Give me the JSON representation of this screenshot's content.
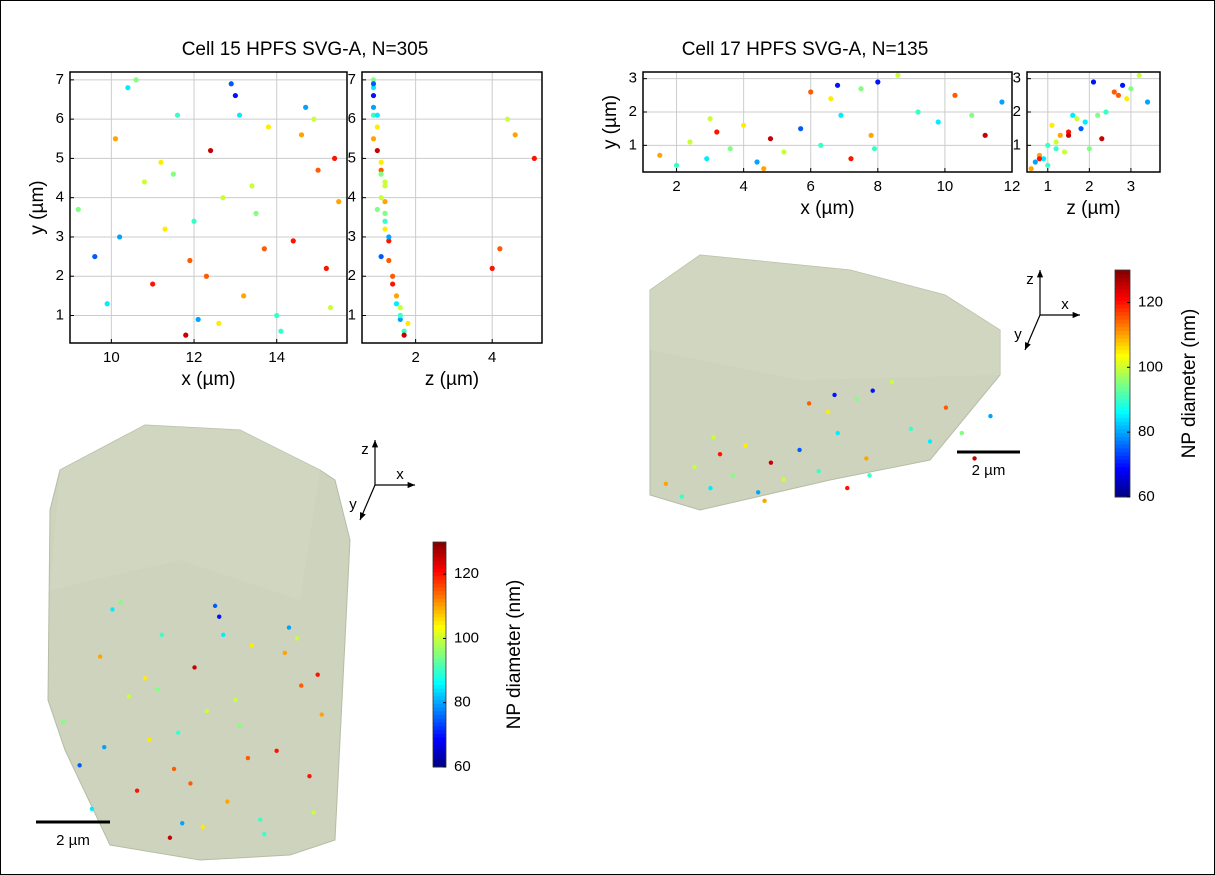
{
  "chart_data": [
    {
      "type": "scatter",
      "title": "Cell 15 HPFS SVG-A, N=305",
      "xlabel": "x (µm)",
      "ylabel": "y (µm)",
      "x": [
        9.2,
        9.6,
        10.1,
        10.4,
        10.8,
        11.0,
        11.3,
        11.6,
        11.9,
        12.1,
        12.4,
        12.7,
        13.0,
        13.2,
        13.5,
        13.8,
        14.1,
        14.4,
        14.7,
        15.0,
        15.3,
        15.5,
        9.9,
        10.6,
        11.2,
        11.8,
        12.3,
        12.9,
        13.4,
        14.0,
        14.6,
        15.2,
        10.2,
        11.5,
        12.6,
        13.7,
        14.9,
        15.4,
        12.0,
        13.1
      ],
      "values": [
        3.7,
        2.5,
        5.5,
        6.8,
        4.4,
        1.8,
        3.2,
        6.1,
        2.4,
        0.9,
        5.2,
        4.0,
        6.6,
        1.5,
        3.6,
        5.8,
        0.6,
        2.9,
        6.3,
        4.7,
        1.2,
        3.9,
        1.3,
        7.0,
        4.9,
        0.5,
        2.0,
        6.9,
        4.3,
        1.0,
        5.6,
        2.2,
        3.0,
        4.6,
        0.8,
        2.7,
        6.0,
        5.0,
        3.4,
        6.1
      ],
      "color_values": [
        95,
        75,
        110,
        85,
        100,
        120,
        105,
        90,
        115,
        80,
        125,
        100,
        70,
        110,
        95,
        105,
        90,
        120,
        80,
        115,
        100,
        110,
        85,
        95,
        105,
        125,
        115,
        75,
        100,
        90,
        110,
        120,
        80,
        95,
        105,
        115,
        100,
        120,
        90,
        85
      ],
      "xlim": [
        9,
        15.7
      ],
      "ylim": [
        0.3,
        7.2
      ],
      "xticks": [
        10,
        12,
        14
      ],
      "yticks": [
        1,
        2,
        3,
        4,
        5,
        6,
        7
      ],
      "grid": true
    },
    {
      "type": "scatter",
      "xlabel": "z (µm)",
      "x": [
        1.0,
        1.1,
        0.9,
        0.9,
        1.2,
        1.4,
        1.2,
        0.9,
        1.3,
        1.6,
        1.0,
        1.1,
        0.9,
        1.5,
        1.2,
        1.0,
        1.7,
        1.3,
        0.9,
        1.1,
        1.6,
        1.2,
        1.5,
        0.9,
        1.1,
        1.7,
        1.4,
        0.9,
        1.2,
        1.6,
        4.6,
        4.0,
        1.3,
        1.1,
        1.8,
        4.2,
        4.4,
        5.1,
        1.2,
        1.0
      ],
      "values": [
        3.7,
        2.5,
        5.5,
        6.8,
        4.4,
        1.8,
        3.2,
        6.1,
        2.4,
        0.9,
        5.2,
        4.0,
        6.6,
        1.5,
        3.6,
        5.8,
        0.6,
        2.9,
        6.3,
        4.7,
        1.2,
        3.9,
        1.3,
        7.0,
        4.9,
        0.5,
        2.0,
        6.9,
        4.3,
        1.0,
        5.6,
        2.2,
        3.0,
        4.6,
        0.8,
        2.7,
        6.0,
        5.0,
        3.4,
        6.1
      ],
      "color_values": [
        95,
        75,
        110,
        85,
        100,
        120,
        105,
        90,
        115,
        80,
        125,
        100,
        70,
        110,
        95,
        105,
        90,
        120,
        80,
        115,
        100,
        110,
        85,
        95,
        105,
        125,
        115,
        75,
        100,
        90,
        110,
        120,
        80,
        95,
        105,
        115,
        100,
        120,
        90,
        85
      ],
      "xlim": [
        0.6,
        5.3
      ],
      "ylim": [
        0.3,
        7.2
      ],
      "xticks": [
        2,
        4
      ],
      "yticks": [
        1,
        2,
        3,
        4,
        5,
        6,
        7
      ],
      "grid": true
    },
    {
      "type": "colorbar",
      "label": "NP diameter (nm)",
      "lim": [
        60,
        130
      ],
      "ticks": [
        60,
        80,
        100,
        120
      ],
      "colormap": "jet"
    },
    {
      "type": "scatter3d",
      "scale_bar": "2 µm",
      "axis_labels": {
        "x": "x",
        "y": "y",
        "z": "z"
      }
    },
    {
      "type": "scatter",
      "title": "Cell 17 HPFS SVG-A, N=135",
      "xlabel": "x (µm)",
      "ylabel": "y (µm)",
      "x": [
        1.5,
        2.0,
        2.4,
        2.9,
        3.2,
        3.6,
        4.0,
        4.4,
        4.8,
        5.2,
        5.7,
        6.0,
        6.3,
        6.6,
        6.9,
        7.2,
        7.5,
        7.8,
        8.0,
        8.6,
        9.2,
        9.8,
        10.3,
        10.8,
        11.2,
        11.7,
        3.0,
        4.6,
        6.8,
        7.9
      ],
      "values": [
        0.7,
        0.4,
        1.1,
        0.6,
        1.4,
        0.9,
        1.6,
        0.5,
        1.2,
        0.8,
        1.5,
        2.6,
        1.0,
        2.4,
        1.9,
        0.6,
        2.7,
        1.3,
        2.9,
        3.1,
        2.0,
        1.7,
        2.5,
        1.9,
        1.3,
        2.3,
        1.8,
        0.3,
        2.8,
        0.9
      ],
      "color_values": [
        110,
        90,
        100,
        85,
        120,
        95,
        105,
        80,
        125,
        100,
        75,
        115,
        90,
        105,
        85,
        120,
        95,
        110,
        70,
        100,
        90,
        85,
        115,
        95,
        125,
        80,
        100,
        110,
        70,
        90
      ],
      "xlim": [
        1,
        12
      ],
      "ylim": [
        0.2,
        3.2
      ],
      "xticks": [
        2,
        4,
        6,
        8,
        10,
        12
      ],
      "yticks": [
        1,
        2,
        3
      ],
      "grid": true
    },
    {
      "type": "scatter",
      "xlabel": "z (µm)",
      "x": [
        0.8,
        1.0,
        1.2,
        0.9,
        1.5,
        2.0,
        1.1,
        0.7,
        2.3,
        1.4,
        1.8,
        2.6,
        1.0,
        2.9,
        1.6,
        0.8,
        3.0,
        1.3,
        2.1,
        3.2,
        2.4,
        1.9,
        2.7,
        2.2,
        1.5,
        3.4,
        1.7,
        0.6,
        2.8,
        1.2
      ],
      "values": [
        0.7,
        0.4,
        1.1,
        0.6,
        1.4,
        0.9,
        1.6,
        0.5,
        1.2,
        0.8,
        1.5,
        2.6,
        1.0,
        2.4,
        1.9,
        0.6,
        2.7,
        1.3,
        2.9,
        3.1,
        2.0,
        1.7,
        2.5,
        1.9,
        1.3,
        2.3,
        1.8,
        0.3,
        2.8,
        0.9
      ],
      "color_values": [
        110,
        90,
        100,
        85,
        120,
        95,
        105,
        80,
        125,
        100,
        75,
        115,
        90,
        105,
        85,
        120,
        95,
        110,
        70,
        100,
        90,
        85,
        115,
        95,
        125,
        80,
        100,
        110,
        70,
        90
      ],
      "xlim": [
        0.5,
        3.7
      ],
      "ylim": [
        0.2,
        3.2
      ],
      "xticks": [
        1,
        2,
        3
      ],
      "yticks": [
        1,
        2,
        3
      ],
      "grid": true
    },
    {
      "type": "colorbar",
      "label": "NP diameter (nm)",
      "lim": [
        60,
        130
      ],
      "ticks": [
        60,
        80,
        100,
        120
      ],
      "colormap": "jet"
    },
    {
      "type": "scatter3d",
      "scale_bar": "2 µm",
      "axis_labels": {
        "x": "x",
        "y": "y",
        "z": "z"
      }
    }
  ]
}
